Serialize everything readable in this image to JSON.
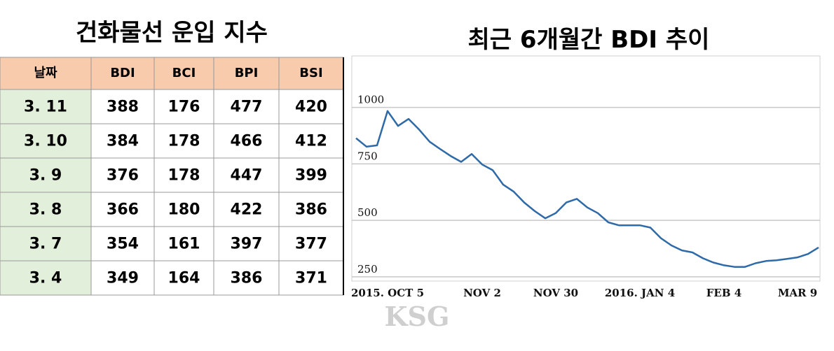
{
  "table": {
    "title": "건화물선 운입 지수",
    "header": [
      "날짜",
      "BDI",
      "BCI",
      "BPI",
      "BSI"
    ],
    "rows": [
      [
        "3. 11",
        "388",
        "176",
        "477",
        "420"
      ],
      [
        "3. 10",
        "384",
        "178",
        "466",
        "412"
      ],
      [
        "3. 9",
        "376",
        "178",
        "447",
        "399"
      ],
      [
        "3. 8",
        "366",
        "180",
        "422",
        "386"
      ],
      [
        "3. 7",
        "354",
        "161",
        "397",
        "377"
      ],
      [
        "3. 4",
        "349",
        "164",
        "386",
        "371"
      ]
    ]
  },
  "chart_data": {
    "type": "line",
    "title": "최근 6개월간 BDI 추이",
    "categories": [
      null,
      null,
      null,
      "2015. OCT 5",
      null,
      null,
      null,
      null,
      null,
      null,
      null,
      null,
      "NOV 2",
      null,
      null,
      null,
      null,
      null,
      null,
      "NOV 30",
      null,
      null,
      null,
      null,
      null,
      null,
      null,
      "2016. JAN 4",
      null,
      null,
      null,
      null,
      null,
      null,
      null,
      "FEB 4",
      null,
      null,
      null,
      null,
      null,
      null,
      "MAR 9",
      null,
      null
    ],
    "values": [
      864,
      826,
      832,
      984,
      918,
      949,
      902,
      848,
      816,
      785,
      759,
      794,
      747,
      722,
      658,
      627,
      579,
      541,
      509,
      532,
      579,
      595,
      557,
      532,
      491,
      478,
      478,
      478,
      468,
      421,
      389,
      367,
      358,
      332,
      313,
      301,
      294,
      294,
      310,
      320,
      323,
      329,
      336,
      351,
      380
    ],
    "color": "#2e6aa8",
    "ylim": [
      231,
      1228
    ],
    "yticks": [
      250,
      500,
      750,
      1000
    ],
    "grid": true
  },
  "watermark": "KSG"
}
